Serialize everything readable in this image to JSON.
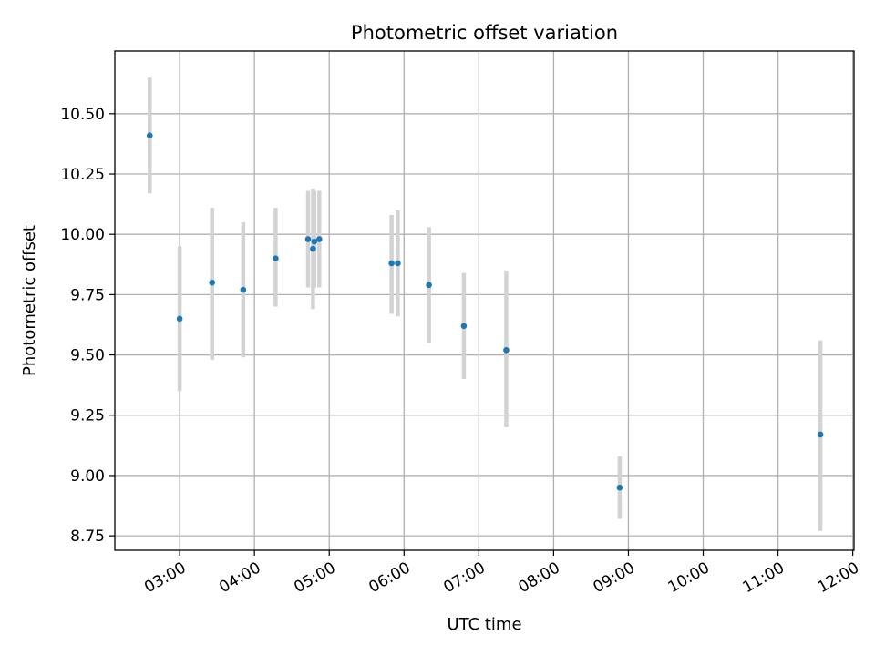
{
  "chart_data": {
    "type": "scatter",
    "title": "Photometric offset variation",
    "xlabel": "UTC time",
    "ylabel": "Photometric offset",
    "x_unit": "hours UTC",
    "xlim": [
      "02:08",
      "12:01"
    ],
    "ylim": [
      8.69,
      10.76
    ],
    "x_ticks": [
      "03:00",
      "04:00",
      "05:00",
      "06:00",
      "07:00",
      "08:00",
      "09:00",
      "10:00",
      "11:00",
      "12:00"
    ],
    "y_ticks": [
      8.75,
      9.0,
      9.25,
      9.5,
      9.75,
      10.0,
      10.25,
      10.5
    ],
    "y_tick_labels": [
      "8.75",
      "9.00",
      "9.25",
      "9.50",
      "9.75",
      "10.00",
      "10.25",
      "10.50"
    ],
    "grid": true,
    "legend": "none",
    "point_color": "#1f77b4",
    "errorbar_color": "#d3d3d3",
    "points": [
      {
        "x": "02:36",
        "y": 10.41,
        "lo": 10.17,
        "hi": 10.65
      },
      {
        "x": "03:00",
        "y": 9.65,
        "lo": 9.35,
        "hi": 9.95
      },
      {
        "x": "03:26",
        "y": 9.8,
        "lo": 9.48,
        "hi": 10.11
      },
      {
        "x": "03:51",
        "y": 9.77,
        "lo": 9.49,
        "hi": 10.05
      },
      {
        "x": "04:17",
        "y": 9.9,
        "lo": 9.7,
        "hi": 10.11
      },
      {
        "x": "04:43",
        "y": 9.98,
        "lo": 9.78,
        "hi": 10.18
      },
      {
        "x": "04:47",
        "y": 9.94,
        "lo": 9.69,
        "hi": 10.19
      },
      {
        "x": "04:48",
        "y": 9.97,
        "lo": 9.78,
        "hi": 10.18
      },
      {
        "x": "04:52",
        "y": 9.98,
        "lo": 9.78,
        "hi": 10.18
      },
      {
        "x": "05:50",
        "y": 9.88,
        "lo": 9.67,
        "hi": 10.08
      },
      {
        "x": "05:55",
        "y": 9.88,
        "lo": 9.66,
        "hi": 10.1
      },
      {
        "x": "06:20",
        "y": 9.79,
        "lo": 9.55,
        "hi": 10.03
      },
      {
        "x": "06:48",
        "y": 9.62,
        "lo": 9.4,
        "hi": 9.84
      },
      {
        "x": "07:22",
        "y": 9.52,
        "lo": 9.2,
        "hi": 9.85
      },
      {
        "x": "08:53",
        "y": 8.95,
        "lo": 8.82,
        "hi": 9.08
      },
      {
        "x": "11:34",
        "y": 9.17,
        "lo": 8.77,
        "hi": 9.56
      }
    ]
  }
}
